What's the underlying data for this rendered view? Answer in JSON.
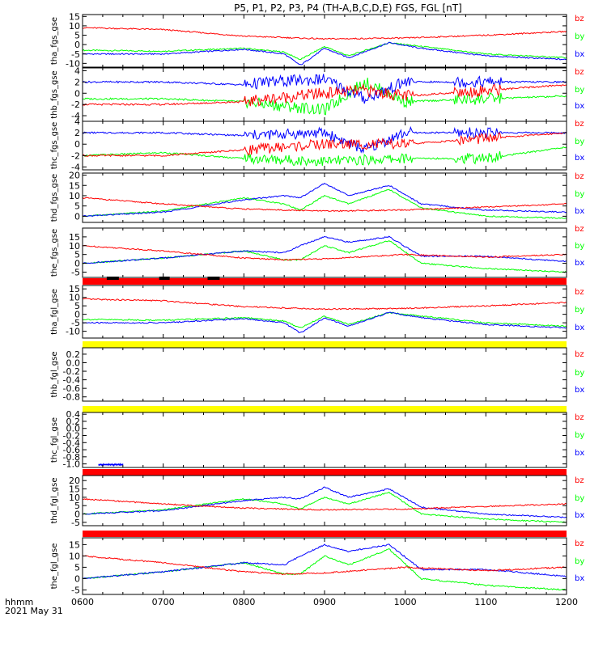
{
  "chart_data": {
    "type": "line",
    "title": "P5, P1, P2, P3, P4 (TH-A,B,C,D,E) FGS, FGL [nT]",
    "xaxis": {
      "ticks": [
        "0600",
        "0700",
        "0800",
        "0900",
        "1000",
        "1100",
        "1200"
      ],
      "label": "hhmm",
      "date": "2021 May 31",
      "range_hours": [
        6,
        12
      ]
    },
    "legend": [
      {
        "name": "bz",
        "color": "#ff0000"
      },
      {
        "name": "by",
        "color": "#00ff00"
      },
      {
        "name": "bx",
        "color": "#0000ff"
      }
    ],
    "panels": [
      {
        "ylabel": "tha_fgs_gse",
        "ylim": [
          -12,
          16
        ],
        "yticks": [
          "15",
          "10",
          "5",
          "0",
          "-5",
          "-10"
        ],
        "series": {
          "bz": [
            [
              6,
              9
            ],
            [
              7,
              8
            ],
            [
              8,
              4.5
            ],
            [
              9,
              3
            ],
            [
              10,
              3.5
            ],
            [
              11,
              5
            ],
            [
              12,
              7
            ]
          ],
          "by": [
            [
              6,
              -3
            ],
            [
              7,
              -3.5
            ],
            [
              8,
              -2
            ],
            [
              8.5,
              -4
            ],
            [
              8.7,
              -8
            ],
            [
              9,
              -1
            ],
            [
              9.3,
              -6
            ],
            [
              9.8,
              1
            ],
            [
              10.2,
              -1
            ],
            [
              11,
              -5
            ],
            [
              12,
              -7
            ]
          ],
          "bx": [
            [
              6,
              -5
            ],
            [
              7,
              -5
            ],
            [
              8,
              -2.5
            ],
            [
              8.5,
              -5
            ],
            [
              8.7,
              -11
            ],
            [
              9,
              -2
            ],
            [
              9.3,
              -7
            ],
            [
              9.8,
              1
            ],
            [
              10.2,
              -2
            ],
            [
              11,
              -6
            ],
            [
              12,
              -8
            ]
          ]
        },
        "flag_bar": null
      },
      {
        "ylabel": "thb_fgs_gse",
        "ylim": [
          -5,
          4.5
        ],
        "yticks": [
          "4",
          "2",
          "0",
          "-2",
          "-4"
        ],
        "series": {
          "bz": [
            [
              6,
              -2
            ],
            [
              7,
              -2
            ],
            [
              8,
              -1.5
            ],
            [
              8.3,
              -1
            ],
            [
              9,
              0
            ],
            [
              9.5,
              0.5
            ],
            [
              10,
              -0.5
            ],
            [
              11,
              0.5
            ],
            [
              12,
              1.5
            ]
          ],
          "by": [
            [
              6,
              -1
            ],
            [
              7,
              -1
            ],
            [
              8,
              -1.5
            ],
            [
              8.3,
              -2
            ],
            [
              9,
              -3
            ],
            [
              9.5,
              2
            ],
            [
              10,
              -1.5
            ],
            [
              11,
              -1
            ],
            [
              12,
              -0.5
            ]
          ],
          "bx": [
            [
              6,
              2
            ],
            [
              7,
              2
            ],
            [
              8,
              1.5
            ],
            [
              8.3,
              2
            ],
            [
              9,
              2.5
            ],
            [
              9.5,
              -1
            ],
            [
              10,
              2
            ],
            [
              11,
              2
            ],
            [
              12,
              2
            ]
          ]
        },
        "flag_bar": null
      },
      {
        "ylabel": "thc_fgs_gse",
        "ylim": [
          -4.5,
          4
        ],
        "yticks": [
          "4",
          "2",
          "0",
          "-2",
          "-4"
        ],
        "series": {
          "bz": [
            [
              6,
              -2
            ],
            [
              7,
              -2
            ],
            [
              8,
              -1
            ],
            [
              9,
              0
            ],
            [
              9.5,
              0
            ],
            [
              10,
              0
            ],
            [
              11,
              1
            ],
            [
              12,
              2
            ]
          ],
          "by": [
            [
              6,
              -2
            ],
            [
              7,
              -1.5
            ],
            [
              8,
              -2.5
            ],
            [
              9,
              -3
            ],
            [
              10,
              -2.5
            ],
            [
              11,
              -2.5
            ],
            [
              12,
              -0.5
            ]
          ],
          "bx": [
            [
              6,
              2
            ],
            [
              7,
              2
            ],
            [
              8,
              1.5
            ],
            [
              9,
              2
            ],
            [
              9.5,
              -1
            ],
            [
              10,
              2
            ],
            [
              11,
              2
            ],
            [
              12,
              2
            ]
          ]
        },
        "flag_bar": null
      },
      {
        "ylabel": "thd_fgs_gse",
        "ylim": [
          -3,
          21
        ],
        "yticks": [
          "20",
          "15",
          "10",
          "5",
          "0"
        ],
        "series": {
          "bz": [
            [
              6,
              9
            ],
            [
              7,
              6
            ],
            [
              8,
              3.5
            ],
            [
              9,
              2.5
            ],
            [
              10,
              3
            ],
            [
              11,
              4.5
            ],
            [
              12,
              6
            ]
          ],
          "by": [
            [
              6,
              0
            ],
            [
              7,
              2.5
            ],
            [
              8,
              9
            ],
            [
              8.5,
              6
            ],
            [
              8.7,
              3
            ],
            [
              9,
              10
            ],
            [
              9.3,
              6
            ],
            [
              9.8,
              13
            ],
            [
              10.2,
              4
            ],
            [
              11,
              0
            ],
            [
              12,
              -1
            ]
          ],
          "bx": [
            [
              6,
              0
            ],
            [
              7,
              2
            ],
            [
              8,
              8
            ],
            [
              8.5,
              10
            ],
            [
              8.7,
              9
            ],
            [
              9,
              16
            ],
            [
              9.3,
              10
            ],
            [
              9.8,
              15
            ],
            [
              10.2,
              6
            ],
            [
              11,
              3
            ],
            [
              12,
              2
            ]
          ]
        },
        "flag_bar": null
      },
      {
        "ylabel": "the_fgs_gse",
        "ylim": [
          -8,
          20
        ],
        "yticks": [
          "15",
          "10",
          "5",
          "0",
          "-5"
        ],
        "series": {
          "bz": [
            [
              6,
              10
            ],
            [
              7,
              7
            ],
            [
              8,
              3
            ],
            [
              8.5,
              2
            ],
            [
              9,
              2.5
            ],
            [
              10,
              5
            ],
            [
              11,
              3.5
            ],
            [
              12,
              5
            ]
          ],
          "by": [
            [
              6,
              0
            ],
            [
              7,
              3
            ],
            [
              8,
              7
            ],
            [
              8.5,
              2
            ],
            [
              8.7,
              2
            ],
            [
              9,
              10
            ],
            [
              9.3,
              6
            ],
            [
              9.8,
              13
            ],
            [
              10.2,
              0
            ],
            [
              11,
              -3
            ],
            [
              12,
              -5
            ]
          ],
          "bx": [
            [
              6,
              0
            ],
            [
              7,
              3
            ],
            [
              8,
              7
            ],
            [
              8.5,
              6
            ],
            [
              8.7,
              10
            ],
            [
              9,
              15
            ],
            [
              9.3,
              12
            ],
            [
              9.8,
              15
            ],
            [
              10.2,
              4
            ],
            [
              11,
              4
            ],
            [
              12,
              1
            ]
          ]
        },
        "flag_bar": {
          "color": "#ff0000",
          "marks": [
            [
              6.3,
              6.45
            ],
            [
              6.95,
              7.08
            ],
            [
              7.55,
              7.7
            ]
          ]
        }
      },
      {
        "ylabel": "tha_fgl_gse",
        "ylim": [
          -14,
          17
        ],
        "yticks": [
          "15",
          "10",
          "5",
          "0",
          "-5",
          "-10"
        ],
        "series": {
          "bz": [
            [
              6,
              9
            ],
            [
              7,
              8
            ],
            [
              8,
              4.5
            ],
            [
              9,
              3
            ],
            [
              10,
              3.5
            ],
            [
              11,
              5
            ],
            [
              12,
              7
            ]
          ],
          "by": [
            [
              6,
              -3
            ],
            [
              7,
              -3.5
            ],
            [
              8,
              -2
            ],
            [
              8.5,
              -4
            ],
            [
              8.7,
              -8
            ],
            [
              9,
              -1
            ],
            [
              9.3,
              -6
            ],
            [
              9.8,
              1
            ],
            [
              10.2,
              -1
            ],
            [
              11,
              -5
            ],
            [
              12,
              -7
            ]
          ],
          "bx": [
            [
              6,
              -5
            ],
            [
              7,
              -5
            ],
            [
              8,
              -2.5
            ],
            [
              8.5,
              -5
            ],
            [
              8.7,
              -11
            ],
            [
              9,
              -2
            ],
            [
              9.3,
              -7
            ],
            [
              9.8,
              1
            ],
            [
              10.2,
              -2
            ],
            [
              11,
              -6
            ],
            [
              12,
              -8
            ]
          ]
        },
        "flag_bar": null
      },
      {
        "ylabel": "thb_fgl_gse",
        "ylim": [
          -0.9,
          0.35
        ],
        "yticks": [
          "0.2",
          "0.0",
          "-0.2",
          "-0.4",
          "-0.6",
          "-0.8"
        ],
        "series": {
          "bz": [],
          "by": [],
          "bx": []
        },
        "flag_bar": {
          "color": "#ffff00",
          "marks": []
        }
      },
      {
        "ylabel": "thc_fgl_gse",
        "ylim": [
          -1.1,
          0.45
        ],
        "yticks": [
          "0.4",
          "0.2",
          "0.0",
          "-0.2",
          "-0.4",
          "-0.6",
          "-0.8",
          "-1.0"
        ],
        "series": {
          "bz": [],
          "by": [],
          "bx": [
            [
              6.2,
              -1.02
            ],
            [
              6.5,
              -1.02
            ]
          ]
        },
        "flag_bar": {
          "color": "#ffff00",
          "marks": []
        }
      },
      {
        "ylabel": "thd_fgl_gse",
        "ylim": [
          -7,
          23
        ],
        "yticks": [
          "20",
          "15",
          "10",
          "5",
          "0",
          "-5"
        ],
        "series": {
          "bz": [
            [
              6,
              9
            ],
            [
              7,
              6
            ],
            [
              8,
              3.5
            ],
            [
              9,
              2.5
            ],
            [
              10,
              3
            ],
            [
              11,
              4.5
            ],
            [
              12,
              6
            ]
          ],
          "by": [
            [
              6,
              0
            ],
            [
              7,
              2.5
            ],
            [
              8,
              9
            ],
            [
              8.5,
              6
            ],
            [
              8.7,
              3
            ],
            [
              9,
              10
            ],
            [
              9.3,
              6
            ],
            [
              9.8,
              13
            ],
            [
              10.2,
              0
            ],
            [
              11,
              -3
            ],
            [
              12,
              -5
            ]
          ],
          "bx": [
            [
              6,
              0
            ],
            [
              7,
              2
            ],
            [
              8,
              8
            ],
            [
              8.5,
              10
            ],
            [
              8.7,
              9
            ],
            [
              9,
              16
            ],
            [
              9.3,
              10
            ],
            [
              9.8,
              15
            ],
            [
              10.2,
              4
            ],
            [
              11,
              0
            ],
            [
              12,
              -2
            ]
          ]
        },
        "flag_bar": {
          "color": "#ff0000",
          "marks": []
        }
      },
      {
        "ylabel": "the_fgl_gse",
        "ylim": [
          -7,
          18
        ],
        "yticks": [
          "15",
          "10",
          "5",
          "0",
          "-5"
        ],
        "series": {
          "bz": [
            [
              6,
              10
            ],
            [
              7,
              7
            ],
            [
              8,
              3
            ],
            [
              8.5,
              2
            ],
            [
              9,
              2.5
            ],
            [
              10,
              5
            ],
            [
              11,
              3.5
            ],
            [
              12,
              5
            ]
          ],
          "by": [
            [
              6,
              0
            ],
            [
              7,
              3
            ],
            [
              8,
              7
            ],
            [
              8.5,
              2
            ],
            [
              8.7,
              2
            ],
            [
              9,
              10
            ],
            [
              9.3,
              6
            ],
            [
              9.8,
              13
            ],
            [
              10.2,
              0
            ],
            [
              11,
              -3
            ],
            [
              12,
              -5
            ]
          ],
          "bx": [
            [
              6,
              0
            ],
            [
              7,
              3
            ],
            [
              8,
              7
            ],
            [
              8.5,
              6
            ],
            [
              8.7,
              10
            ],
            [
              9,
              15
            ],
            [
              9.3,
              12
            ],
            [
              9.8,
              15
            ],
            [
              10.2,
              4
            ],
            [
              11,
              4
            ],
            [
              12,
              1
            ]
          ]
        },
        "flag_bar": {
          "color": "#ff0000",
          "marks": []
        }
      }
    ]
  }
}
